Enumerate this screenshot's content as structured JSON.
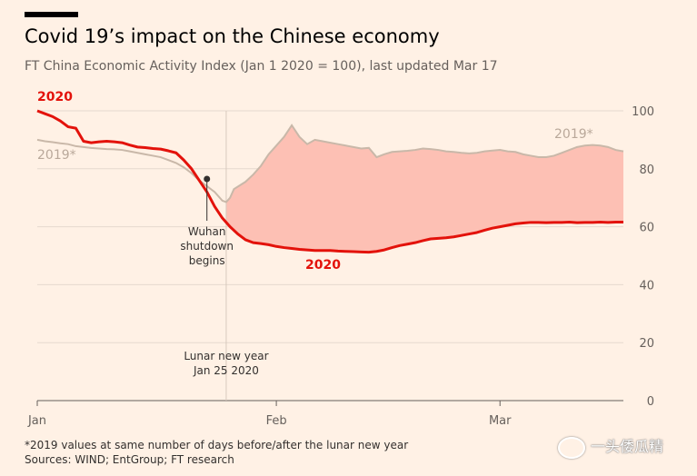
{
  "header": {
    "title": "Covid 19’s impact on the Chinese economy",
    "subtitle": "FT China Economic Activity Index (Jan 1 2020 = 100), last updated Mar 17"
  },
  "footer": {
    "note": "*2019 values at same number of days before/after the lunar new year",
    "sources": "Sources: WIND; EntGroup; FT research"
  },
  "watermark": {
    "text": "一头倭瓜精",
    "icon": "wechat-icon"
  },
  "colors": {
    "line_2020": "#e3120b",
    "line_2019": "#c9b8a9",
    "gap_fill": "#fdc0b4",
    "grid": "#e6d9ce",
    "axis_text": "#66605c",
    "background": "#fff1e5"
  },
  "chart_data": {
    "type": "line",
    "x_unit": "days since Jan 1 2020",
    "xlim": [
      0,
      76
    ],
    "ylim": [
      0,
      100
    ],
    "yticks": [
      0,
      20,
      40,
      60,
      80,
      100
    ],
    "xticks": [
      {
        "x": 0,
        "label": "Jan"
      },
      {
        "x": 31,
        "label": "Feb"
      },
      {
        "x": 60,
        "label": "Mar"
      }
    ],
    "grid": true,
    "series": [
      {
        "name": "2020",
        "points": [
          [
            0,
            100
          ],
          [
            1,
            99
          ],
          [
            2,
            98
          ],
          [
            3,
            96.5
          ],
          [
            4,
            94.5
          ],
          [
            5,
            94
          ],
          [
            6,
            89.5
          ],
          [
            7,
            89
          ],
          [
            8,
            89.3
          ],
          [
            9,
            89.5
          ],
          [
            10,
            89.3
          ],
          [
            11,
            89
          ],
          [
            12,
            88.2
          ],
          [
            13,
            87.5
          ],
          [
            14,
            87.3
          ],
          [
            15,
            87
          ],
          [
            16,
            86.8
          ],
          [
            17,
            86.2
          ],
          [
            18,
            85.5
          ],
          [
            19,
            83
          ],
          [
            20,
            80
          ],
          [
            21,
            76
          ],
          [
            22,
            72
          ],
          [
            23,
            67
          ],
          [
            24,
            63
          ],
          [
            25,
            60
          ],
          [
            26,
            57.5
          ],
          [
            27,
            55.5
          ],
          [
            28,
            54.5
          ],
          [
            29,
            54.2
          ],
          [
            30,
            53.8
          ],
          [
            31,
            53.2
          ],
          [
            32,
            52.8
          ],
          [
            33,
            52.5
          ],
          [
            34,
            52.2
          ],
          [
            35,
            52
          ],
          [
            36,
            51.8
          ],
          [
            37,
            51.8
          ],
          [
            38,
            51.8
          ],
          [
            39,
            51.6
          ],
          [
            40,
            51.5
          ],
          [
            41,
            51.4
          ],
          [
            42,
            51.3
          ],
          [
            43,
            51.2
          ],
          [
            44,
            51.5
          ],
          [
            45,
            52
          ],
          [
            46,
            52.8
          ],
          [
            47,
            53.5
          ],
          [
            48,
            54
          ],
          [
            49,
            54.5
          ],
          [
            50,
            55.2
          ],
          [
            51,
            55.8
          ],
          [
            52,
            56
          ],
          [
            53,
            56.2
          ],
          [
            54,
            56.5
          ],
          [
            55,
            57
          ],
          [
            56,
            57.5
          ],
          [
            57,
            58
          ],
          [
            58,
            58.8
          ],
          [
            59,
            59.5
          ],
          [
            60,
            60
          ],
          [
            61,
            60.5
          ],
          [
            62,
            61
          ],
          [
            63,
            61.3
          ],
          [
            64,
            61.5
          ],
          [
            65,
            61.5
          ],
          [
            66,
            61.4
          ],
          [
            67,
            61.5
          ],
          [
            68,
            61.5
          ],
          [
            69,
            61.6
          ],
          [
            70,
            61.4
          ],
          [
            71,
            61.5
          ],
          [
            72,
            61.5
          ],
          [
            73,
            61.6
          ],
          [
            74,
            61.5
          ],
          [
            75,
            61.6
          ],
          [
            76,
            61.6
          ]
        ]
      },
      {
        "name": "2019*",
        "points": [
          [
            0,
            90
          ],
          [
            1,
            89.5
          ],
          [
            2,
            89.2
          ],
          [
            3,
            88.8
          ],
          [
            4,
            88.5
          ],
          [
            5,
            87.8
          ],
          [
            6,
            87.5
          ],
          [
            7,
            87.2
          ],
          [
            8,
            87
          ],
          [
            9,
            86.8
          ],
          [
            10,
            86.7
          ],
          [
            11,
            86.5
          ],
          [
            12,
            86
          ],
          [
            13,
            85.5
          ],
          [
            14,
            85
          ],
          [
            15,
            84.5
          ],
          [
            16,
            84
          ],
          [
            17,
            83
          ],
          [
            18,
            82
          ],
          [
            19,
            80.5
          ],
          [
            20,
            78.5
          ],
          [
            21,
            76
          ],
          [
            22,
            74
          ],
          [
            23,
            72
          ],
          [
            24,
            69
          ],
          [
            24.5,
            68.5
          ],
          [
            25,
            70
          ],
          [
            25.5,
            73
          ],
          [
            27,
            75.5
          ],
          [
            28,
            78
          ],
          [
            29,
            81
          ],
          [
            30,
            85
          ],
          [
            31,
            88
          ],
          [
            32,
            91
          ],
          [
            33,
            95
          ],
          [
            34,
            91
          ],
          [
            35,
            88.5
          ],
          [
            36,
            90
          ],
          [
            37,
            89.5
          ],
          [
            38,
            89
          ],
          [
            39,
            88.5
          ],
          [
            40,
            88
          ],
          [
            41,
            87.5
          ],
          [
            42,
            87
          ],
          [
            43,
            87.2
          ],
          [
            44,
            84
          ],
          [
            45,
            85
          ],
          [
            46,
            85.8
          ],
          [
            47,
            86
          ],
          [
            48,
            86.2
          ],
          [
            49,
            86.5
          ],
          [
            50,
            87
          ],
          [
            51,
            86.8
          ],
          [
            52,
            86.5
          ],
          [
            53,
            86
          ],
          [
            54,
            85.8
          ],
          [
            55,
            85.5
          ],
          [
            56,
            85.3
          ],
          [
            57,
            85.5
          ],
          [
            58,
            86
          ],
          [
            59,
            86.3
          ],
          [
            60,
            86.5
          ],
          [
            61,
            86
          ],
          [
            62,
            85.8
          ],
          [
            63,
            85
          ],
          [
            64,
            84.5
          ],
          [
            65,
            84
          ],
          [
            66,
            84
          ],
          [
            67,
            84.5
          ],
          [
            68,
            85.5
          ],
          [
            69,
            86.5
          ],
          [
            70,
            87.5
          ],
          [
            71,
            88
          ],
          [
            72,
            88.2
          ],
          [
            73,
            88
          ],
          [
            74,
            87.5
          ],
          [
            75,
            86.5
          ],
          [
            76,
            86
          ]
        ]
      }
    ],
    "gap_fill_from_x": 24.5,
    "labels": [
      {
        "text": "2020",
        "series": "2020"
      },
      {
        "text": "2020",
        "series": "2020"
      },
      {
        "text": "2019*",
        "series": "2019*"
      },
      {
        "text": "2019*",
        "series": "2019*"
      }
    ],
    "annotations": [
      {
        "text_lines": [
          "Wuhan",
          "shutdown",
          "begins"
        ],
        "x": 22,
        "y": 76.5
      },
      {
        "text_lines": [
          "Lunar new year",
          "Jan 25 2020"
        ],
        "x": 24.5
      }
    ]
  }
}
